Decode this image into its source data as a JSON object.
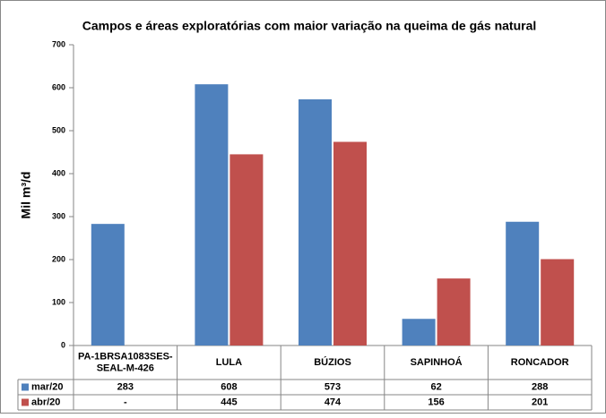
{
  "chart_data": {
    "type": "bar",
    "title": "Campos e áreas exploratórias com maior variação na queima de gás natural",
    "y_label": "Mil m³/d",
    "categories": [
      "PA-1BRSA1083SES-SEAL-M-426",
      "LULA",
      "BÚZIOS",
      "SAPINHOÁ",
      "RONCADOR"
    ],
    "series": [
      {
        "name": "mar/20",
        "color": "#4f81bd",
        "values": [
          283,
          608,
          573,
          62,
          288
        ]
      },
      {
        "name": "abr/20",
        "color": "#c0504d",
        "values": [
          null,
          445,
          474,
          156,
          201
        ],
        "value_labels": [
          "-",
          "445",
          "474",
          "156",
          "201"
        ]
      }
    ],
    "ylim": [
      0,
      700
    ],
    "yticks": [
      0,
      100,
      200,
      300,
      400,
      500,
      600,
      700
    ],
    "grid": false,
    "data_table": true
  }
}
